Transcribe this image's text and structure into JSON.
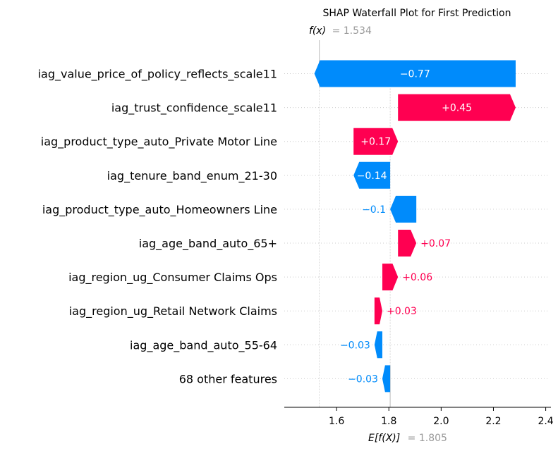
{
  "chart_data": {
    "type": "waterfall",
    "title": "SHAP Waterfall Plot for First Prediction",
    "fx_label": "f(x)",
    "fx_value_text": "= 1.534",
    "fx_value": 1.534,
    "ex_label": "E[f(X)]",
    "ex_value_text": "= 1.805",
    "base_value": 1.805,
    "xlim": [
      1.4,
      2.42
    ],
    "x_ticks": [
      1.6,
      1.8,
      2.0,
      2.2,
      2.4
    ],
    "x_tick_labels": [
      "1.6",
      "1.8",
      "2.0",
      "2.2",
      "2.4"
    ],
    "features": [
      {
        "name": "iag_value_price_of_policy_reflects_scale11",
        "value": -0.77,
        "label": "−0.77"
      },
      {
        "name": "iag_trust_confidence_scale11",
        "value": 0.45,
        "label": "+0.45"
      },
      {
        "name": "iag_product_type_auto_Private Motor Line",
        "value": 0.17,
        "label": "+0.17"
      },
      {
        "name": "iag_tenure_band_enum_21-30",
        "value": -0.14,
        "label": "−0.14"
      },
      {
        "name": "iag_product_type_auto_Homeowners Line",
        "value": -0.1,
        "label": "−0.1"
      },
      {
        "name": "iag_age_band_auto_65+",
        "value": 0.07,
        "label": "+0.07"
      },
      {
        "name": "iag_region_ug_Consumer Claims Ops",
        "value": 0.06,
        "label": "+0.06"
      },
      {
        "name": "iag_region_ug_Retail Network Claims",
        "value": 0.03,
        "label": "+0.03"
      },
      {
        "name": "iag_age_band_auto_55-64",
        "value": -0.03,
        "label": "−0.03"
      },
      {
        "name": "68 other features",
        "value": -0.03,
        "label": "−0.03"
      }
    ],
    "colors": {
      "positive": "#ff0051",
      "negative": "#008bfb",
      "muted": "#999999"
    }
  }
}
